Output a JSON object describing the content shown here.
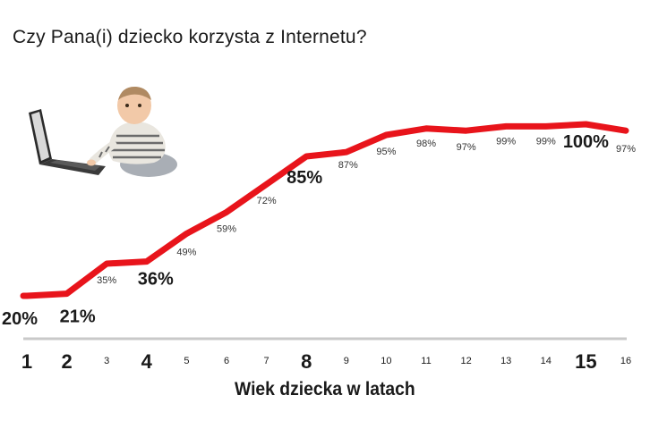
{
  "title": "Czy Pana(i) dziecko korzysta z Internetu?",
  "chart_data": {
    "type": "line",
    "title": "Czy Pana(i) dziecko korzysta z Internetu?",
    "xlabel": "Wiek dziecka w latach",
    "ylabel": "",
    "x": [
      1,
      2,
      3,
      4,
      5,
      6,
      7,
      8,
      9,
      10,
      11,
      12,
      13,
      14,
      15,
      16
    ],
    "series": [
      {
        "values": [
          20,
          21,
          35,
          36,
          49,
          59,
          72,
          85,
          87,
          95,
          98,
          97,
          99,
          99,
          100,
          97
        ],
        "data_labels": [
          "20%",
          "21%",
          "35%",
          "36%",
          "49%",
          "59%",
          "72%",
          "85%",
          "87%",
          "95%",
          "98%",
          "97%",
          "99%",
          "99%",
          "100%",
          "97%"
        ],
        "highlighted": [
          true,
          true,
          false,
          true,
          false,
          false,
          false,
          true,
          false,
          false,
          false,
          false,
          false,
          false,
          true,
          false
        ],
        "color": "#e8141b"
      }
    ],
    "tick_labels": [
      "1",
      "2",
      "3",
      "4",
      "5",
      "6",
      "7",
      "8",
      "9",
      "10",
      "11",
      "12",
      "13",
      "14",
      "15",
      "16"
    ],
    "highlighted_ticks": [
      true,
      true,
      false,
      true,
      false,
      false,
      false,
      true,
      false,
      false,
      false,
      false,
      false,
      false,
      true,
      false
    ],
    "ylim": [
      0,
      100
    ],
    "grid": false,
    "legend": "none"
  },
  "illustration": "baby-with-laptop-photo"
}
